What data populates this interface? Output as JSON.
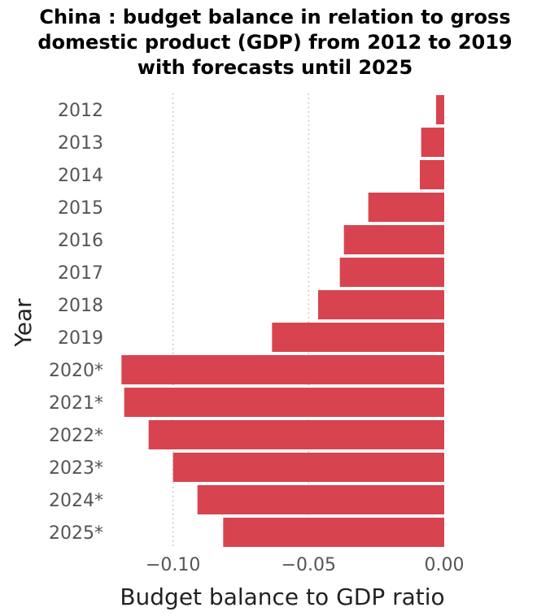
{
  "chart_data": {
    "type": "bar",
    "orientation": "horizontal",
    "title_lines": [
      "China : budget balance in relation to gross",
      "domestic product (GDP) from 2012 to 2019",
      "with forecasts until 2025"
    ],
    "xlabel": "Budget balance to GDP ratio",
    "ylabel": "Year",
    "categories": [
      "2012",
      "2013",
      "2014",
      "2015",
      "2016",
      "2017",
      "2018",
      "2019",
      "2020*",
      "2021*",
      "2022*",
      "2023*",
      "2024*",
      "2025*"
    ],
    "values": [
      -0.003,
      -0.0085,
      -0.009,
      -0.028,
      -0.037,
      -0.0385,
      -0.0465,
      -0.0635,
      -0.119,
      -0.118,
      -0.109,
      -0.1,
      -0.091,
      -0.0815
    ],
    "xlim": [
      -0.12,
      0.0
    ],
    "xticks": [
      -0.1,
      -0.05,
      0.0
    ],
    "xtick_labels": [
      "−0.10",
      "−0.05",
      "0.00"
    ],
    "grid": "vertical dotted",
    "bar_color": "#d7444f"
  }
}
